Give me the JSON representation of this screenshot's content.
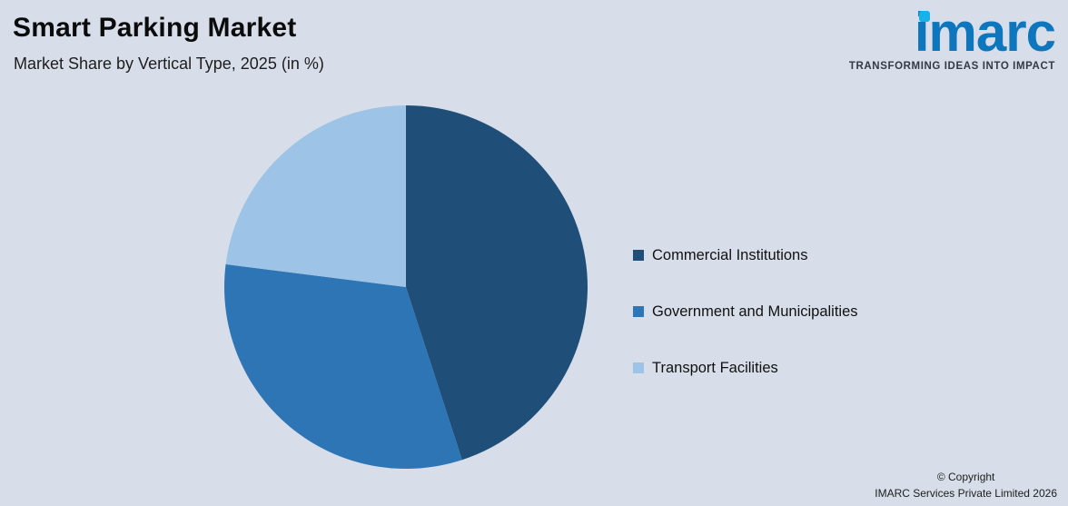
{
  "chart_data": {
    "type": "pie",
    "title": "Smart Parking Market",
    "subtitle": "Market Share by Vertical Type, 2025 (in %)",
    "start_angle_deg_from_top": 0,
    "direction": "clockwise",
    "legend_position": "right",
    "data_labels_shown": false,
    "segments": [
      {
        "label": "Commercial Institutions",
        "value": 45,
        "color": "#1f4e79"
      },
      {
        "label": "Government and Municipalities",
        "value": 32,
        "color": "#2e75b6"
      },
      {
        "label": "Transport Facilities",
        "value": 23,
        "color": "#9dc3e6"
      }
    ]
  },
  "logo": {
    "text": "imarc",
    "tagline": "TRANSFORMING IDEAS INTO IMPACT",
    "brand_color": "#0d76bd",
    "dot_color": "#16b2e8"
  },
  "copyright": {
    "line1": "© Copyright",
    "line2": "IMARC Services Private Limited 2026"
  },
  "colors": {
    "background": "#d8dee9"
  }
}
